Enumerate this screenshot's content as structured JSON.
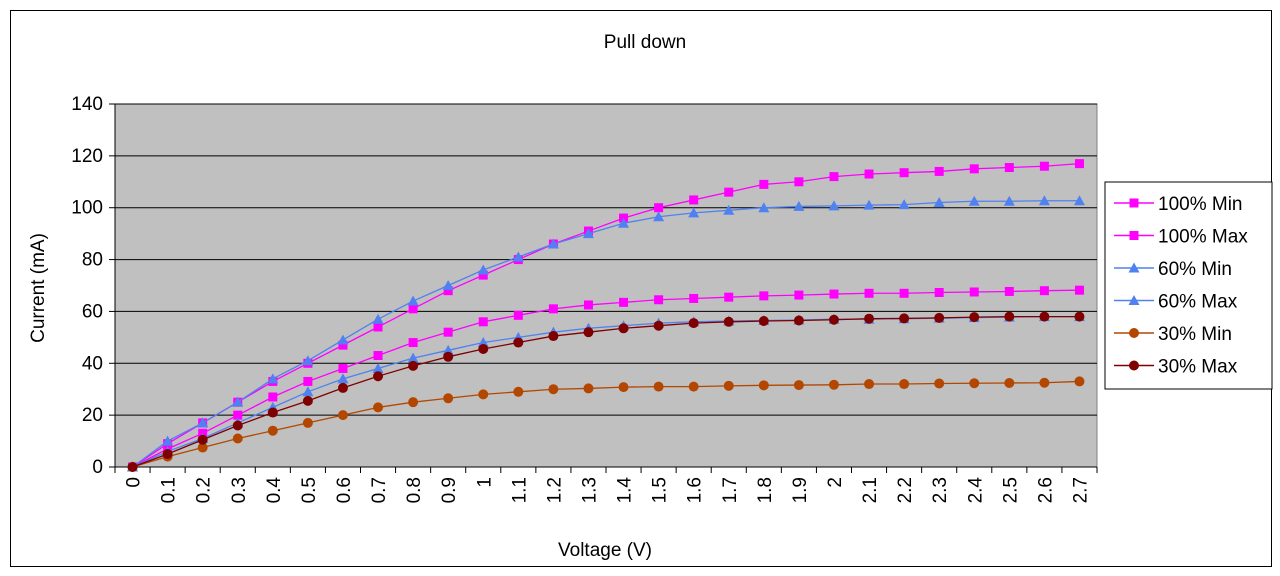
{
  "chart_data": {
    "type": "line",
    "title": "Pull down",
    "xlabel": "Voltage (V)",
    "ylabel": "Current (mA)",
    "categories": [
      "0",
      "0.1",
      "0.2",
      "0.3",
      "0.4",
      "0.5",
      "0.6",
      "0.7",
      "0.8",
      "0.9",
      "1",
      "1.1",
      "1.2",
      "1.3",
      "1.4",
      "1.5",
      "1.6",
      "1.7",
      "1.8",
      "1.9",
      "2",
      "2.1",
      "2.2",
      "2.3",
      "2.4",
      "2.5",
      "2.6",
      "2.7"
    ],
    "ylim": [
      0,
      140
    ],
    "yticks": [
      0,
      20,
      40,
      60,
      80,
      100,
      120,
      140
    ],
    "plot_background": "#c0c0c0",
    "grid": "horizontal",
    "legend_position": "right",
    "series": [
      {
        "name": "100% Min",
        "color": "#ff00ff",
        "marker": "square",
        "values": [
          0,
          7,
          13,
          20,
          27,
          33,
          38,
          43,
          48,
          52,
          56,
          58.5,
          61,
          62.5,
          63.5,
          64.5,
          65,
          65.5,
          66,
          66.3,
          66.7,
          67,
          67,
          67.3,
          67.5,
          67.7,
          68,
          68.2
        ]
      },
      {
        "name": "100% Max",
        "color": "#ff00ff",
        "marker": "square",
        "values": [
          0,
          9,
          17,
          25,
          33,
          40,
          47,
          54,
          61,
          68,
          74,
          80,
          86,
          91,
          96,
          100,
          103,
          106,
          109,
          110,
          112,
          113,
          113.5,
          114,
          115,
          115.5,
          116,
          117
        ]
      },
      {
        "name": "60% Min",
        "color": "#4f81f0",
        "marker": "triangle",
        "values": [
          0,
          6,
          11,
          17,
          23,
          29,
          34,
          38,
          42,
          45,
          48,
          50,
          52,
          53.5,
          54.5,
          55.5,
          56,
          56.3,
          56.5,
          56.7,
          57,
          57,
          57.2,
          57.4,
          57.6,
          57.8,
          58,
          58
        ]
      },
      {
        "name": "60% Max",
        "color": "#4f81f0",
        "marker": "triangle",
        "values": [
          0,
          10,
          17,
          25,
          34,
          41,
          49,
          57,
          64,
          70,
          76,
          81,
          86,
          90,
          94,
          96.5,
          98,
          99,
          100,
          100.5,
          100.7,
          101,
          101.2,
          102,
          102.5,
          102.5,
          102.7,
          102.7
        ]
      },
      {
        "name": "30% Min",
        "color": "#b34700",
        "marker": "circle",
        "values": [
          0,
          4,
          7.5,
          11,
          14,
          17,
          20,
          23,
          25,
          26.5,
          28,
          29,
          30,
          30.3,
          30.8,
          31,
          31,
          31.3,
          31.5,
          31.6,
          31.7,
          32,
          32,
          32.2,
          32.3,
          32.4,
          32.5,
          33
        ]
      },
      {
        "name": "30% Max",
        "color": "#7f0000",
        "marker": "circle",
        "values": [
          0,
          5,
          10.5,
          16,
          21,
          25.5,
          30.5,
          35,
          39,
          42.5,
          45.5,
          48,
          50.5,
          52,
          53.5,
          54.5,
          55.5,
          56,
          56.3,
          56.5,
          56.8,
          57.2,
          57.3,
          57.5,
          57.8,
          58,
          58,
          58
        ]
      }
    ]
  }
}
